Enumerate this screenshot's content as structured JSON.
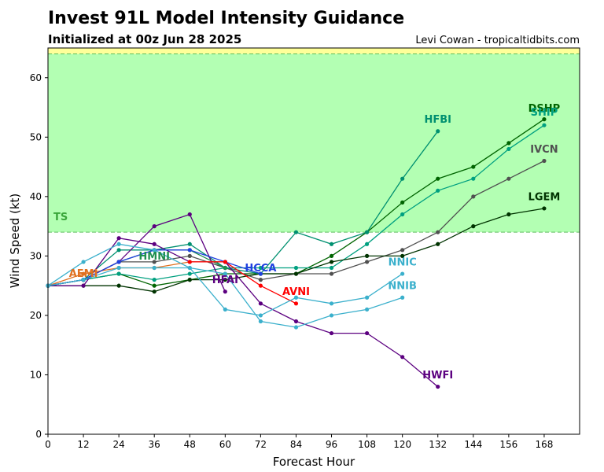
{
  "header": {
    "title": "Invest 91L Model Intensity Guidance",
    "subtitle": "Initialized at 00z Jun 28 2025",
    "credit": "Levi Cowan - tropicaltidbits.com"
  },
  "chart_data": {
    "type": "line",
    "xlabel": "Forecast Hour",
    "ylabel": "Wind Speed (kt)",
    "xlim": [
      0,
      180
    ],
    "ylim": [
      0,
      65
    ],
    "xticks": [
      0,
      12,
      24,
      36,
      48,
      60,
      72,
      84,
      96,
      108,
      120,
      132,
      144,
      156,
      168
    ],
    "yticks": [
      0,
      10,
      20,
      30,
      40,
      50,
      60
    ],
    "grid": false,
    "bands": [
      {
        "label": "TS",
        "from": 34,
        "to": 64,
        "color": "#b3ffb3"
      },
      {
        "label": "",
        "from": 64,
        "to": 65,
        "color": "#ffff99"
      }
    ],
    "series": [
      {
        "name": "DSHP",
        "color": "#006400",
        "x": [
          0,
          12,
          24,
          36,
          48,
          60,
          72,
          84,
          96,
          108,
          120,
          132,
          144,
          156,
          168
        ],
        "y": [
          25,
          26,
          27,
          25,
          26,
          27,
          27,
          27,
          30,
          34,
          39,
          43,
          45,
          49,
          53
        ]
      },
      {
        "name": "SHIP",
        "color": "#00a080",
        "x": [
          0,
          12,
          24,
          36,
          48,
          60,
          72,
          84,
          96,
          108,
          120,
          132,
          144,
          156,
          168
        ],
        "y": [
          25,
          26,
          27,
          26,
          27,
          28,
          28,
          28,
          28,
          32,
          37,
          41,
          43,
          48,
          52
        ]
      },
      {
        "name": "IVCN",
        "color": "#505050",
        "x": [
          0,
          12,
          24,
          36,
          48,
          60,
          72,
          84,
          96,
          108,
          120,
          132,
          144,
          156,
          168
        ],
        "y": [
          25,
          26,
          29,
          29,
          30,
          28,
          26,
          27,
          27,
          29,
          31,
          34,
          40,
          43,
          46
        ]
      },
      {
        "name": "LGEM",
        "color": "#003300",
        "x": [
          0,
          12,
          24,
          36,
          48,
          60,
          72,
          84,
          96,
          108,
          120,
          132,
          144,
          156,
          168
        ],
        "y": [
          25,
          25,
          25,
          24,
          26,
          26,
          27,
          27,
          29,
          30,
          30,
          32,
          35,
          37,
          38
        ]
      },
      {
        "name": "HFBI",
        "color": "#009070",
        "x": [
          0,
          12,
          24,
          36,
          48,
          60,
          72,
          84,
          96,
          108,
          120,
          132
        ],
        "y": [
          25,
          26,
          31,
          31,
          32,
          28,
          27,
          34,
          32,
          34,
          43,
          51
        ]
      },
      {
        "name": "HWFI",
        "color": "#5c0080",
        "x": [
          0,
          12,
          24,
          36,
          48,
          60,
          72,
          84,
          96,
          108,
          120,
          132
        ],
        "y": [
          25,
          25,
          33,
          32,
          29,
          29,
          22,
          19,
          17,
          17,
          13,
          8
        ]
      },
      {
        "name": "HMNI",
        "color": "#1f8f4f",
        "x": [
          0,
          12,
          24,
          36,
          48,
          60
        ],
        "y": [
          25,
          26,
          29,
          31,
          31,
          28
        ]
      },
      {
        "name": "HFAI",
        "color": "#5c0080",
        "x": [
          0,
          12,
          24,
          36,
          48,
          60
        ],
        "y": [
          25,
          26,
          29,
          35,
          37,
          24
        ]
      },
      {
        "name": "AEMI",
        "color": "#e07020",
        "x": [
          0,
          12,
          24,
          36,
          48,
          60
        ],
        "y": [
          25,
          27,
          28,
          28,
          29,
          29
        ]
      },
      {
        "name": "HCCA",
        "color": "#2040e0",
        "x": [
          0,
          12,
          24,
          36,
          48,
          60,
          72
        ],
        "y": [
          25,
          26,
          29,
          31,
          31,
          29,
          27
        ]
      },
      {
        "name": "AVNI",
        "color": "#ff0000",
        "x": [
          48,
          60,
          72,
          84
        ],
        "y": [
          29,
          29,
          25,
          22
        ]
      },
      {
        "name": "NNIC",
        "color": "#3bb0cc",
        "x": [
          0,
          12,
          24,
          36,
          48,
          60,
          72,
          84,
          96,
          108,
          120
        ],
        "y": [
          25,
          29,
          32,
          31,
          28,
          21,
          20,
          23,
          22,
          23,
          27
        ]
      },
      {
        "name": "NNIB",
        "color": "#3bb0cc",
        "x": [
          0,
          12,
          24,
          36,
          48,
          60,
          72,
          84,
          96,
          108,
          120
        ],
        "y": [
          25,
          26,
          28,
          28,
          28,
          27,
          19,
          18,
          20,
          21,
          23
        ]
      }
    ],
    "labels": [
      {
        "name": "DSHP",
        "text": "DSHP",
        "x": 168,
        "y": 54.3
      },
      {
        "name": "SHIP",
        "text": "SHIP",
        "x": 168,
        "y": 53.6
      },
      {
        "name": "IVCN",
        "text": "IVCN",
        "x": 168,
        "y": 47.4
      },
      {
        "name": "LGEM",
        "text": "LGEM",
        "x": 168,
        "y": 39.4
      },
      {
        "name": "HFBI",
        "text": "HFBI",
        "x": 132,
        "y": 52.4
      },
      {
        "name": "HWFI",
        "text": "HWFI",
        "x": 132,
        "y": 9.4
      },
      {
        "name": "HMNI",
        "text": "HMNI",
        "x": 36,
        "y": 29.4
      },
      {
        "name": "HFAI",
        "text": "HFAI",
        "x": 60,
        "y": 25.4
      },
      {
        "name": "AEMI",
        "text": "AEMI",
        "x": 12,
        "y": 26.5
      },
      {
        "name": "HCCA",
        "text": "HCCA",
        "x": 72,
        "y": 27.4
      },
      {
        "name": "AVNI",
        "text": "AVNI",
        "x": 84,
        "y": 23.4
      },
      {
        "name": "NNIC",
        "text": "NNIC",
        "x": 120,
        "y": 28.4
      },
      {
        "name": "NNIB",
        "text": "NNIB",
        "x": 120,
        "y": 24.4
      }
    ]
  }
}
